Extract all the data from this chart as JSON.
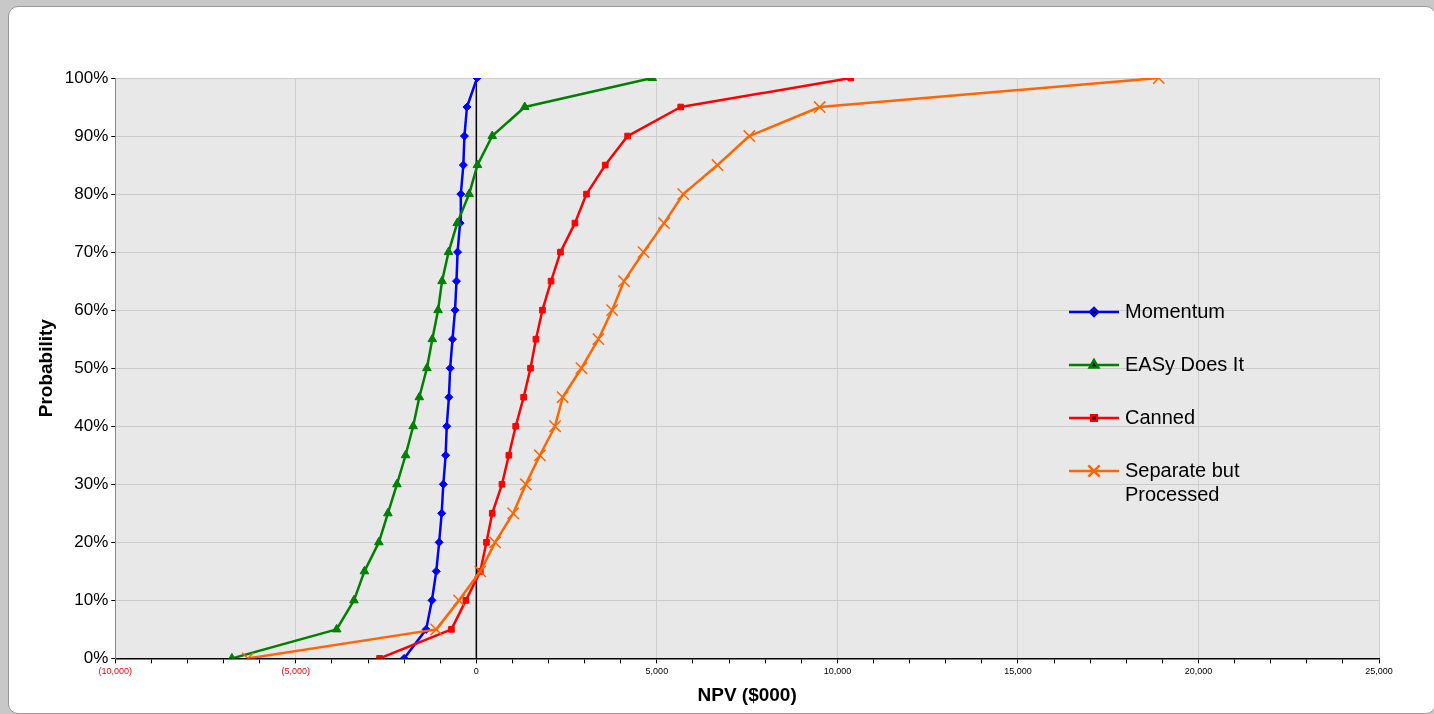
{
  "chart_data": {
    "type": "line",
    "xlabel": "NPV ($000)",
    "ylabel": "Probability",
    "xlim": [
      -10000,
      25000
    ],
    "xticks": [
      {
        "value": -10000,
        "label": "(10,000)"
      },
      {
        "value": -9000,
        "label": null
      },
      {
        "value": -8000,
        "label": null
      },
      {
        "value": -7000,
        "label": null
      },
      {
        "value": -6000,
        "label": null
      },
      {
        "value": -5000,
        "label": "(5,000)"
      },
      {
        "value": -4000,
        "label": null
      },
      {
        "value": -3000,
        "label": null
      },
      {
        "value": -2000,
        "label": null
      },
      {
        "value": -1000,
        "label": null
      },
      0,
      {
        "value": 1000,
        "label": null
      },
      {
        "value": 2000,
        "label": null
      },
      {
        "value": 3000,
        "label": null
      },
      {
        "value": 4000,
        "label": null
      },
      {
        "value": 5000,
        "label": "5,000"
      },
      {
        "value": 6000,
        "label": null
      },
      {
        "value": 7000,
        "label": null
      },
      {
        "value": 8000,
        "label": null
      },
      {
        "value": 9000,
        "label": null
      },
      {
        "value": 10000,
        "label": "10,000"
      },
      {
        "value": 11000,
        "label": null
      },
      {
        "value": 12000,
        "label": null
      },
      {
        "value": 13000,
        "label": null
      },
      {
        "value": 14000,
        "label": null
      },
      {
        "value": 15000,
        "label": "15,000"
      },
      {
        "value": 16000,
        "label": null
      },
      {
        "value": 17000,
        "label": null
      },
      {
        "value": 18000,
        "label": null
      },
      {
        "value": 19000,
        "label": null
      },
      {
        "value": 20000,
        "label": "20,000"
      },
      {
        "value": 21000,
        "label": null
      },
      {
        "value": 22000,
        "label": null
      },
      {
        "value": 23000,
        "label": null
      },
      {
        "value": 24000,
        "label": null
      },
      {
        "value": 25000,
        "label": "25,000"
      }
    ],
    "ylim": [
      0,
      100
    ],
    "yticks": [
      {
        "value": 0,
        "label": "0%"
      },
      {
        "value": 10,
        "label": "10%"
      },
      {
        "value": 20,
        "label": "20%"
      },
      {
        "value": 30,
        "label": "30%"
      },
      {
        "value": 40,
        "label": "40%"
      },
      {
        "value": 50,
        "label": "50%"
      },
      {
        "value": 60,
        "label": "60%"
      },
      {
        "value": 70,
        "label": "70%"
      },
      {
        "value": 80,
        "label": "80%"
      },
      {
        "value": 90,
        "label": "90%"
      },
      {
        "value": 100,
        "label": "100%"
      }
    ],
    "grid": true,
    "legend": "right",
    "ref_lines": [
      {
        "axis": "x",
        "value": 0,
        "color": "#000000"
      }
    ],
    "series": [
      {
        "name": "Momentum",
        "color": "#0000ff",
        "marker": "diamond",
        "x": [
          -2000,
          -1390,
          -1230,
          -1110,
          -1030,
          -960,
          -915,
          -850,
          -820,
          -760,
          -725,
          -660,
          -590,
          -550,
          -520,
          -450,
          -430,
          -360,
          -330,
          -260,
          20
        ],
        "values": [
          0,
          5,
          10,
          15,
          20,
          25,
          30,
          35,
          40,
          45,
          50,
          55,
          60,
          65,
          70,
          75,
          80,
          85,
          90,
          95,
          100
        ]
      },
      {
        "name": "EASy Does It",
        "color": "#008000",
        "marker": "triangle",
        "x": [
          -6770,
          -3870,
          -3390,
          -3100,
          -2700,
          -2450,
          -2200,
          -1960,
          -1750,
          -1580,
          -1370,
          -1220,
          -1060,
          -950,
          -770,
          -530,
          -200,
          30,
          440,
          1340,
          4870
        ],
        "values": [
          0,
          5,
          10,
          15,
          20,
          25,
          30,
          35,
          40,
          45,
          50,
          55,
          60,
          65,
          70,
          75,
          80,
          85,
          90,
          95,
          100
        ]
      },
      {
        "name": "Canned",
        "color": "#ff0000",
        "marker": "square",
        "x": [
          -2680,
          -690,
          -290,
          110,
          280,
          440,
          710,
          900,
          1090,
          1310,
          1500,
          1650,
          1830,
          2070,
          2330,
          2730,
          3050,
          3570,
          4190,
          5660,
          10370
        ],
        "values": [
          0,
          5,
          10,
          15,
          20,
          25,
          30,
          35,
          40,
          45,
          50,
          55,
          60,
          65,
          70,
          75,
          80,
          85,
          90,
          95,
          100
        ]
      },
      {
        "name": "Separate but Processed",
        "color": "#ff6600",
        "marker": "cross",
        "x": [
          -6330,
          -1110,
          -480,
          110,
          520,
          1020,
          1370,
          1760,
          2180,
          2390,
          2910,
          3380,
          3760,
          4090,
          4630,
          5200,
          5730,
          6680,
          7560,
          9510,
          18900
        ],
        "values": [
          0,
          5,
          10,
          15,
          20,
          25,
          30,
          35,
          40,
          45,
          50,
          55,
          60,
          65,
          70,
          75,
          80,
          85,
          90,
          95,
          100
        ]
      }
    ]
  }
}
